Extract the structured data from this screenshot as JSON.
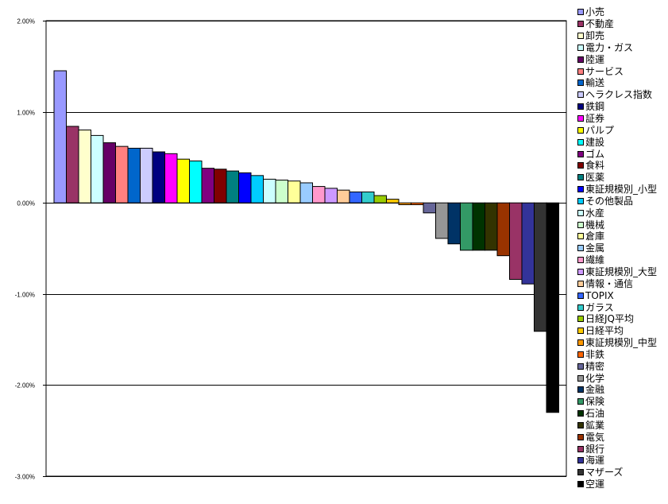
{
  "chart_data": {
    "type": "bar",
    "title": "",
    "xlabel": "",
    "ylabel": "",
    "ylim": [
      -3.0,
      2.0
    ],
    "y_ticks": [
      "2.00%",
      "1.00%",
      "0.00%",
      "-1.00%",
      "-2.00%",
      "-3.00%"
    ],
    "y_tick_values": [
      2,
      1,
      0,
      -1,
      -2,
      -3
    ],
    "grid": true,
    "legend_position": "right",
    "unit": "%",
    "series": [
      {
        "name": "小売",
        "value": 1.45,
        "color": "#9999FF"
      },
      {
        "name": "不動産",
        "value": 0.84,
        "color": "#993366"
      },
      {
        "name": "卸売",
        "value": 0.8,
        "color": "#FFFFCC"
      },
      {
        "name": "電力・ガス",
        "value": 0.74,
        "color": "#CCFFFF"
      },
      {
        "name": "陸運",
        "value": 0.66,
        "color": "#660066"
      },
      {
        "name": "サービス",
        "value": 0.62,
        "color": "#FF8080"
      },
      {
        "name": "輸送",
        "value": 0.6,
        "color": "#0066CC"
      },
      {
        "name": "ヘラクレス指数",
        "value": 0.6,
        "color": "#CCCCFF"
      },
      {
        "name": "鉄鋼",
        "value": 0.56,
        "color": "#000080"
      },
      {
        "name": "証券",
        "value": 0.54,
        "color": "#FF00FF"
      },
      {
        "name": "パルプ",
        "value": 0.48,
        "color": "#FFFF00"
      },
      {
        "name": "建設",
        "value": 0.46,
        "color": "#00FFFF"
      },
      {
        "name": "ゴム",
        "value": 0.38,
        "color": "#800080"
      },
      {
        "name": "食料",
        "value": 0.37,
        "color": "#800000"
      },
      {
        "name": "医薬",
        "value": 0.35,
        "color": "#008080"
      },
      {
        "name": "東証規模別_小型",
        "value": 0.33,
        "color": "#0000FF"
      },
      {
        "name": "その他製品",
        "value": 0.3,
        "color": "#00CCFF"
      },
      {
        "name": "水産",
        "value": 0.26,
        "color": "#CCFFFF"
      },
      {
        "name": "機械",
        "value": 0.25,
        "color": "#CCFFCC"
      },
      {
        "name": "倉庫",
        "value": 0.24,
        "color": "#FFFF99"
      },
      {
        "name": "金属",
        "value": 0.22,
        "color": "#99CCFF"
      },
      {
        "name": "繊維",
        "value": 0.18,
        "color": "#FF99CC"
      },
      {
        "name": "東証規模別_大型",
        "value": 0.16,
        "color": "#CC99FF"
      },
      {
        "name": "情報・通信",
        "value": 0.14,
        "color": "#FFCC99"
      },
      {
        "name": "TOPIX",
        "value": 0.12,
        "color": "#3366FF"
      },
      {
        "name": "ガラス",
        "value": 0.12,
        "color": "#33CCCC"
      },
      {
        "name": "日経JQ平均",
        "value": 0.08,
        "color": "#99CC00"
      },
      {
        "name": "日経平均",
        "value": 0.04,
        "color": "#FFCC00"
      },
      {
        "name": "東証規模別_中型",
        "value": -0.02,
        "color": "#FF9900"
      },
      {
        "name": "非鉄",
        "value": -0.02,
        "color": "#FF6600"
      },
      {
        "name": "精密",
        "value": -0.11,
        "color": "#666699"
      },
      {
        "name": "化学",
        "value": -0.39,
        "color": "#969696"
      },
      {
        "name": "金融",
        "value": -0.45,
        "color": "#003366"
      },
      {
        "name": "保険",
        "value": -0.52,
        "color": "#339966"
      },
      {
        "name": "石油",
        "value": -0.52,
        "color": "#003300"
      },
      {
        "name": "鉱業",
        "value": -0.52,
        "color": "#333300"
      },
      {
        "name": "電気",
        "value": -0.58,
        "color": "#993300"
      },
      {
        "name": "銀行",
        "value": -0.84,
        "color": "#993366"
      },
      {
        "name": "海運",
        "value": -0.89,
        "color": "#333399"
      },
      {
        "name": "マザーズ",
        "value": -1.41,
        "color": "#333333"
      },
      {
        "name": "空運",
        "value": -2.3,
        "color": "#000000"
      }
    ]
  }
}
